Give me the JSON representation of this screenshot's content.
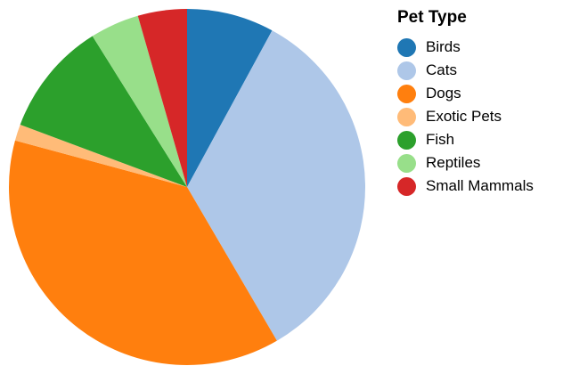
{
  "chart_data": {
    "type": "pie",
    "legend_title": "Pet Type",
    "legend_placement": "right",
    "categories": [
      "Birds",
      "Cats",
      "Dogs",
      "Exotic Pets",
      "Fish",
      "Reptiles",
      "Small Mammals"
    ],
    "values": [
      8.0,
      34.0,
      38.0,
      1.5,
      10.5,
      4.5,
      4.5
    ],
    "colors": [
      "#1f77b4",
      "#aec7e8",
      "#ff7f0e",
      "#ffbb78",
      "#2ca02c",
      "#98df8a",
      "#d62728"
    ],
    "start": "top",
    "direction": "clockwise"
  }
}
